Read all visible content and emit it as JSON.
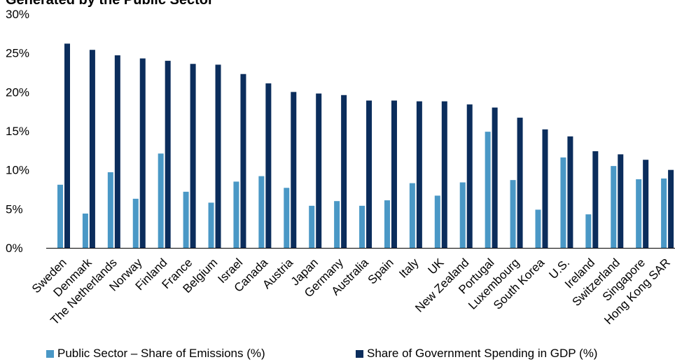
{
  "chart_data": {
    "type": "bar",
    "title": "Generated by the Public Sector",
    "xlabel": "",
    "ylabel": "",
    "ylim": [
      0,
      30
    ],
    "yticks": [
      "0%",
      "5%",
      "10%",
      "15%",
      "20%",
      "25%",
      "30%"
    ],
    "categories": [
      "Sweden",
      "Denmark",
      "The Netherlands",
      "Norway",
      "Finland",
      "France",
      "Belgium",
      "Israel",
      "Canada",
      "Austria",
      "Japan",
      "Germany",
      "Australia",
      "Spain",
      "Italy",
      "UK",
      "New Zealand",
      "Portugal",
      "Luxembourg",
      "South Korea",
      "U.S.",
      "Ireland",
      "Switzerland",
      "Singapore",
      "Hong Kong SAR"
    ],
    "series": [
      {
        "name": "Public Sector – Share of Emissions (%)",
        "color": "#4a98c6",
        "values": [
          8.1,
          4.4,
          9.7,
          6.3,
          12.1,
          7.2,
          5.8,
          8.5,
          9.2,
          7.7,
          5.4,
          6.0,
          5.4,
          6.1,
          8.3,
          6.7,
          8.4,
          14.9,
          8.7,
          4.9,
          11.6,
          4.3,
          10.5,
          8.8,
          8.9
        ]
      },
      {
        "name": "Share of Government Spending in GDP (%)",
        "color": "#0b2d5c",
        "values": [
          26.2,
          25.4,
          24.7,
          24.3,
          24.0,
          23.6,
          23.5,
          22.3,
          21.1,
          20.0,
          19.8,
          19.6,
          18.9,
          18.9,
          18.8,
          18.8,
          18.4,
          18.0,
          16.7,
          15.2,
          14.3,
          12.4,
          12.0,
          11.3,
          10.0
        ]
      }
    ],
    "grid": false,
    "legend": "bottom"
  }
}
